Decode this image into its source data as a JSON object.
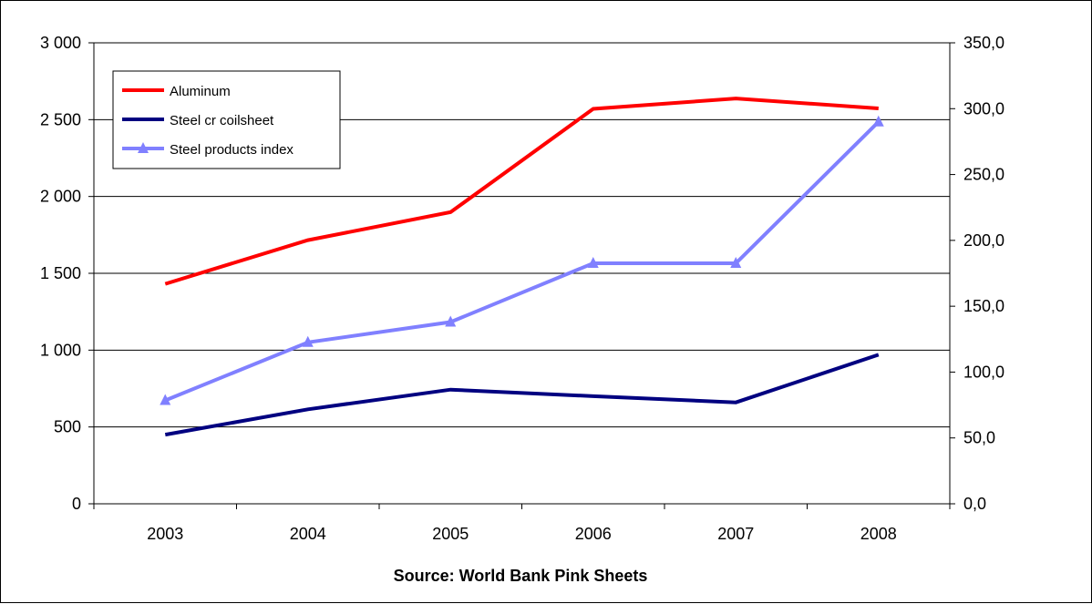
{
  "chart_data": {
    "type": "line",
    "categories": [
      "2003",
      "2004",
      "2005",
      "2006",
      "2007",
      "2008"
    ],
    "xlabel": "Source: World Bank Pink Sheets",
    "y_left": {
      "ylim": [
        0,
        3000
      ],
      "ticks": [
        0,
        500,
        1000,
        1500,
        2000,
        2500,
        3000
      ],
      "tick_labels": [
        "0",
        "500",
        "1 000",
        "1 500",
        "2 000",
        "2 500",
        "3 000"
      ]
    },
    "y_right": {
      "ylim": [
        0,
        350
      ],
      "ticks": [
        0,
        50,
        100,
        150,
        200,
        250,
        300,
        350
      ],
      "tick_labels": [
        "0,0",
        "50,0",
        "100,0",
        "150,0",
        "200,0",
        "250,0",
        "300,0",
        "350,0"
      ]
    },
    "grid": true,
    "legend_position": "top-left",
    "series": [
      {
        "name": "Aluminum",
        "axis": "left",
        "color": "#ff0000",
        "marker": "none",
        "values": [
          1431,
          1716,
          1898,
          2570,
          2638,
          2573
        ]
      },
      {
        "name": "Steel cr coilsheet",
        "axis": "left",
        "color": "#000080",
        "marker": "none",
        "values": [
          450,
          615,
          743,
          700,
          660,
          970
        ]
      },
      {
        "name": "Steel products index",
        "axis": "right",
        "color": "#8080ff",
        "marker": "triangle",
        "values": [
          78.5,
          122.6,
          138.0,
          182.6,
          182.6,
          290.0
        ]
      }
    ]
  }
}
